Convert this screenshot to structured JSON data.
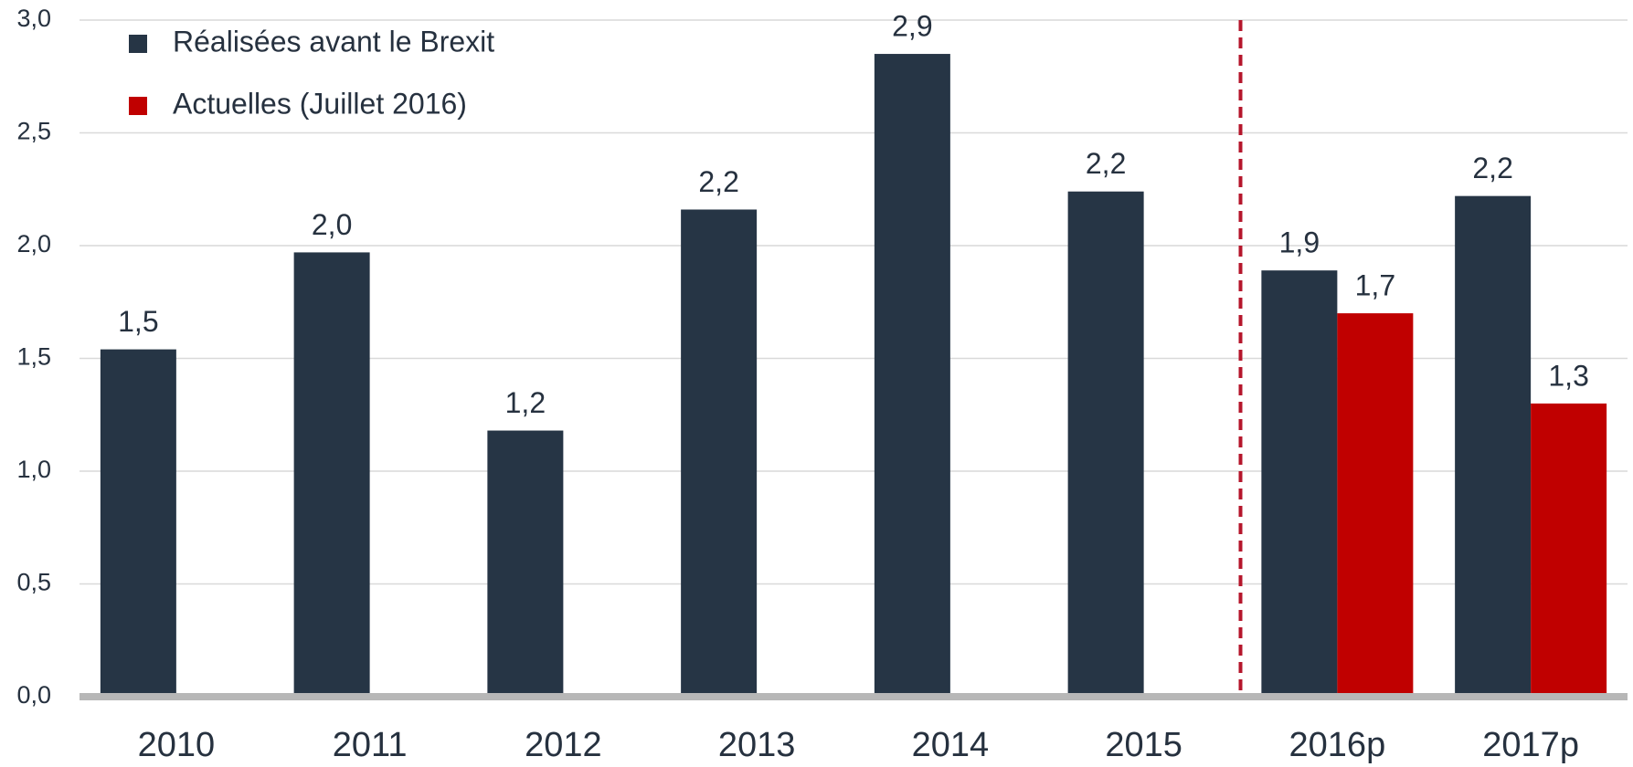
{
  "chart_data": {
    "type": "bar",
    "categories": [
      "2010",
      "2011",
      "2012",
      "2013",
      "2014",
      "2015",
      "2016p",
      "2017p"
    ],
    "series": [
      {
        "name": "Réalisées avant le Brexit",
        "color": "#263545",
        "values": [
          1.54,
          1.97,
          1.18,
          2.16,
          2.85,
          2.24,
          1.89,
          2.22
        ],
        "value_labels": [
          "1,5",
          "2,0",
          "1,2",
          "2,2",
          "2,9",
          "2,2",
          "1,9",
          "2,2"
        ]
      },
      {
        "name": "Actuelles (Juillet 2016)",
        "color": "#c00000",
        "values": [
          null,
          null,
          null,
          null,
          null,
          null,
          1.7,
          1.3
        ],
        "value_labels": [
          null,
          null,
          null,
          null,
          null,
          null,
          "1,7",
          "1,3"
        ]
      }
    ],
    "ylim": [
      0,
      3
    ],
    "yticks": [
      {
        "value": 0,
        "label": "0,0"
      },
      {
        "value": 0.5,
        "label": "0,5"
      },
      {
        "value": 1,
        "label": "1,0"
      },
      {
        "value": 1.5,
        "label": "1,5"
      },
      {
        "value": 2,
        "label": "2,0"
      },
      {
        "value": 2.5,
        "label": "2,5"
      },
      {
        "value": 3,
        "label": "3,0"
      }
    ],
    "grid": true,
    "legend": "upper left"
  }
}
